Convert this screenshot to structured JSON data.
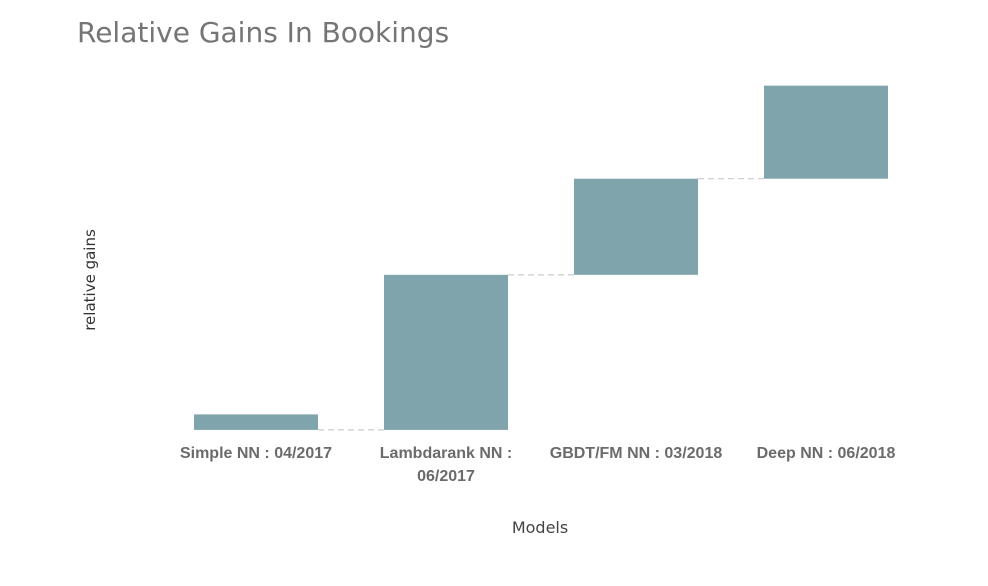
{
  "chart_data": {
    "type": "bar",
    "subtype": "waterfall",
    "title": "Relative Gains In Bookings",
    "xlabel": "Models",
    "ylabel": "relative gains",
    "categories": [
      "Simple NN : 04/2017",
      "Lambdarank NN : 06/2017",
      "GBDT/FM NN : 03/2018",
      "Deep NN : 06/2018"
    ],
    "values": [
      -1,
      10,
      6.2,
      6
    ],
    "ylim": [
      -1.2,
      23.5
    ],
    "grid": false,
    "connector_lines": true,
    "colors": {
      "bar": "#80a4ab",
      "connector": "#cccccc"
    }
  }
}
